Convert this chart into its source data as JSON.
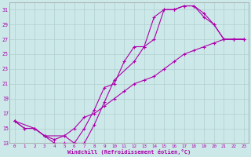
{
  "xlabel": "Windchill (Refroidissement éolien,°C)",
  "background_color": "#cde8e8",
  "grid_color": "#b0d0d0",
  "line_color": "#aa00aa",
  "xlim": [
    -0.5,
    23.5
  ],
  "ylim": [
    13,
    32
  ],
  "xticks": [
    0,
    1,
    2,
    3,
    4,
    5,
    6,
    7,
    8,
    9,
    10,
    11,
    12,
    13,
    14,
    15,
    16,
    17,
    18,
    19,
    20,
    21,
    22,
    23
  ],
  "yticks": [
    13,
    15,
    17,
    19,
    21,
    23,
    25,
    27,
    29,
    31
  ],
  "line1_x": [
    0,
    1,
    2,
    3,
    4,
    5,
    6,
    7,
    8,
    9,
    10,
    11,
    12,
    13,
    14,
    15,
    16,
    17,
    18,
    19,
    20,
    21,
    22,
    23
  ],
  "line1_y": [
    16,
    15,
    15,
    14,
    13,
    13,
    13,
    15,
    17.5,
    20.5,
    21,
    24,
    26,
    26,
    30,
    31,
    31,
    31.5,
    31.5,
    30.5,
    29,
    27,
    27,
    27
  ],
  "line2_x": [
    0,
    1,
    2,
    3,
    4,
    5,
    6,
    7,
    8,
    9,
    10,
    11,
    12,
    13,
    14,
    15,
    16,
    17,
    18,
    19,
    20,
    21,
    22,
    23
  ],
  "line2_y": [
    16,
    15,
    15,
    14,
    13.5,
    14,
    15,
    16.5,
    17,
    18,
    19,
    20,
    21,
    21.5,
    22,
    23,
    24,
    25,
    25.5,
    26,
    26.5,
    27,
    27,
    27
  ],
  "line3_x": [
    0,
    2,
    3,
    5,
    6,
    7,
    8,
    9,
    10,
    12,
    13,
    14,
    15,
    16,
    17,
    18,
    19,
    20,
    21,
    22,
    23
  ],
  "line3_y": [
    16,
    15,
    14,
    14,
    13,
    13,
    15.5,
    18.5,
    21.5,
    24,
    26,
    27,
    31,
    31,
    31.5,
    31.5,
    30,
    29,
    27,
    27,
    27
  ]
}
